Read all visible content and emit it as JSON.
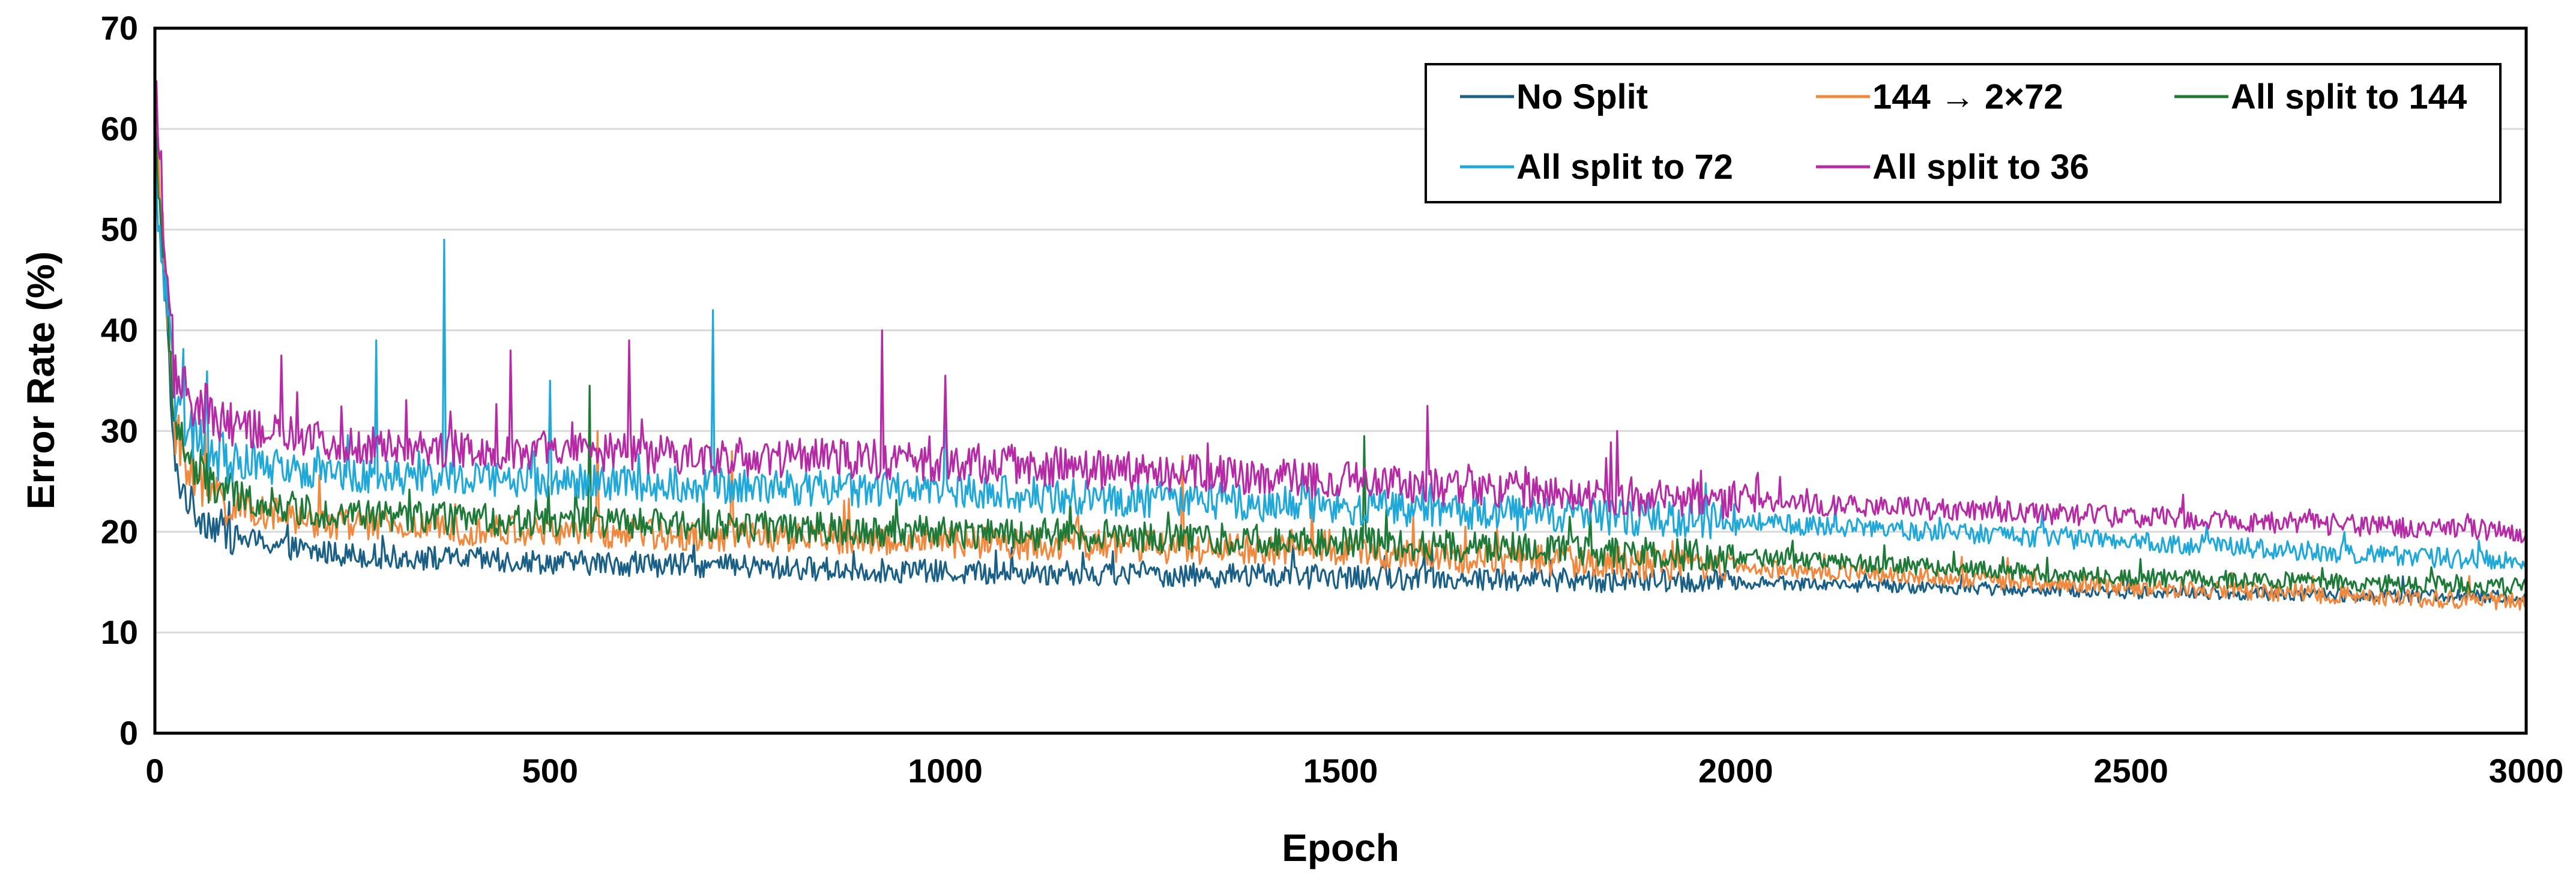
{
  "chart_data": {
    "type": "line",
    "title": "",
    "xlabel": "Epoch",
    "ylabel": "Error Rate (%)",
    "xlim": [
      0,
      3000
    ],
    "ylim": [
      0,
      70
    ],
    "xticks": [
      0,
      500,
      1000,
      1500,
      2000,
      2500,
      3000
    ],
    "yticks": [
      0,
      10,
      20,
      30,
      40,
      50,
      60,
      70
    ],
    "grid": "horizontal",
    "legend_position": "top-right",
    "series": [
      {
        "name": "No Split",
        "color": "#1a5f86",
        "x": [
          0,
          25,
          50,
          100,
          200,
          300,
          500,
          750,
          1000,
          1500,
          2000,
          2500,
          3000
        ],
        "values": [
          63,
          26,
          22,
          19.5,
          18,
          17.5,
          17,
          16.5,
          16,
          15.5,
          15,
          14,
          13.5
        ],
        "noise": 1.2,
        "spikes": []
      },
      {
        "name": "144 → 2×72",
        "color": "#f0883e",
        "x": [
          0,
          25,
          50,
          100,
          200,
          300,
          500,
          750,
          1000,
          1500,
          2000,
          2500,
          3000
        ],
        "values": [
          62,
          30,
          25,
          22.5,
          21,
          20.5,
          20,
          19.5,
          19,
          18,
          16.5,
          14.5,
          13
        ],
        "noise": 1.6,
        "spikes": [
          [
            560,
            30
          ],
          [
            730,
            28
          ],
          [
            1300,
            27.5
          ]
        ]
      },
      {
        "name": "All split to 144",
        "color": "#1e7a37",
        "x": [
          0,
          25,
          50,
          100,
          200,
          300,
          500,
          750,
          1000,
          1500,
          2000,
          2500,
          3000
        ],
        "values": [
          60,
          31,
          26,
          23.5,
          22,
          21.5,
          21,
          20.5,
          20,
          19,
          17.5,
          15.5,
          14.5
        ],
        "noise": 1.6,
        "spikes": [
          [
            550,
            34.5
          ],
          [
            1530,
            29.5
          ]
        ]
      },
      {
        "name": "All split to 72",
        "color": "#20a8d8",
        "x": [
          0,
          25,
          50,
          100,
          200,
          300,
          500,
          750,
          1000,
          1500,
          2000,
          2500,
          3000
        ],
        "values": [
          55,
          33,
          29,
          27,
          26,
          25.5,
          25,
          24.5,
          24,
          22.5,
          21,
          19,
          17
        ],
        "noise": 1.8,
        "spikes": [
          [
            280,
            39
          ],
          [
            365,
            49
          ],
          [
            500,
            35
          ],
          [
            705,
            42
          ],
          [
            1000,
            35
          ]
        ]
      },
      {
        "name": "All split to 36",
        "color": "#b62aa6",
        "x": [
          0,
          25,
          50,
          100,
          200,
          300,
          500,
          750,
          1000,
          1500,
          2000,
          2500,
          3000
        ],
        "values": [
          64,
          35,
          32,
          30.5,
          29,
          28.5,
          28,
          27.5,
          27,
          25,
          23,
          21.5,
          20
        ],
        "noise": 2.0,
        "spikes": [
          [
            160,
            37.5
          ],
          [
            450,
            38
          ],
          [
            600,
            39
          ],
          [
            920,
            40
          ],
          [
            1000,
            35.5
          ],
          [
            1610,
            32.5
          ],
          [
            1850,
            30
          ]
        ]
      }
    ]
  }
}
